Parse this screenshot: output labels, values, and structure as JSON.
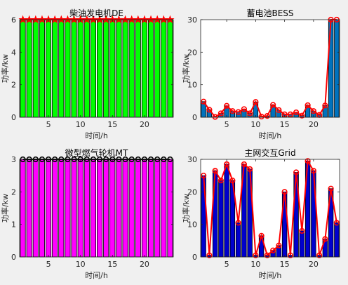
{
  "figure": {
    "background": "#f0f0f0"
  },
  "chart_data": [
    {
      "type": "bar",
      "title": "柴油发电机DE",
      "xlabel": "时间/h",
      "ylabel": "功率/kw",
      "x": [
        1,
        2,
        3,
        4,
        5,
        6,
        7,
        8,
        9,
        10,
        11,
        12,
        13,
        14,
        15,
        16,
        17,
        18,
        19,
        20,
        21,
        22,
        23,
        24
      ],
      "values": [
        6,
        6,
        6,
        6,
        6,
        6,
        6,
        6,
        6,
        6,
        6,
        6,
        6,
        6,
        6,
        6,
        6,
        6,
        6,
        6,
        6,
        6,
        6,
        6
      ],
      "bar_color": "#00ff00",
      "line_color": "#ff0000",
      "marker": "star",
      "xlim": [
        0.5,
        24.5
      ],
      "ylim": [
        0,
        6
      ],
      "xticks": [
        5,
        10,
        15,
        20
      ],
      "yticks": [
        0,
        2,
        4,
        6
      ]
    },
    {
      "type": "bar",
      "title": "蓄电池BESS",
      "xlabel": "时间/h",
      "ylabel": "功率/kw",
      "x": [
        1,
        2,
        3,
        4,
        5,
        6,
        7,
        8,
        9,
        10,
        11,
        12,
        13,
        14,
        15,
        16,
        17,
        18,
        19,
        20,
        21,
        22,
        23,
        24
      ],
      "values": [
        4.8,
        2.3,
        0.1,
        1.2,
        3.5,
        1.9,
        1.6,
        2.5,
        1.2,
        4.7,
        0.2,
        0.4,
        3.8,
        2.2,
        0.9,
        0.9,
        1.5,
        0.5,
        3.7,
        1.9,
        0.7,
        3.6,
        30,
        30
      ],
      "bar_color": "#0072bd",
      "line_color": "#ff0000",
      "marker": "circle",
      "xlim": [
        0.5,
        24.5
      ],
      "ylim": [
        0,
        30
      ],
      "xticks": [
        5,
        10,
        15,
        20
      ],
      "yticks": [
        0,
        10,
        20,
        30
      ]
    },
    {
      "type": "bar",
      "title": "微型燃气轮机MT",
      "xlabel": "时间/h",
      "ylabel": "功率/kw",
      "x": [
        1,
        2,
        3,
        4,
        5,
        6,
        7,
        8,
        9,
        10,
        11,
        12,
        13,
        14,
        15,
        16,
        17,
        18,
        19,
        20,
        21,
        22,
        23,
        24
      ],
      "values": [
        3,
        3,
        3,
        3,
        3,
        3,
        3,
        3,
        3,
        3,
        3,
        3,
        3,
        3,
        3,
        3,
        3,
        3,
        3,
        3,
        3,
        3,
        3,
        3
      ],
      "bar_color": "#ff00ff",
      "line_color": "#000000",
      "marker": "circle",
      "xlim": [
        0.5,
        24.5
      ],
      "ylim": [
        0,
        3
      ],
      "xticks": [
        5,
        10,
        15,
        20
      ],
      "yticks": [
        0,
        1,
        2,
        3
      ]
    },
    {
      "type": "bar",
      "title": "主网交互Grid",
      "xlabel": "时间/h",
      "ylabel": "功率/kw",
      "x": [
        1,
        2,
        3,
        4,
        5,
        6,
        7,
        8,
        9,
        10,
        11,
        12,
        13,
        14,
        15,
        16,
        17,
        18,
        19,
        20,
        21,
        22,
        23,
        24
      ],
      "values": [
        25,
        0.5,
        26.5,
        23.5,
        28.5,
        23.5,
        10.5,
        28.5,
        27,
        0.5,
        6.5,
        0.5,
        2,
        3.5,
        20,
        0.5,
        26,
        8,
        29.5,
        26.5,
        0.5,
        5.5,
        21,
        10.5
      ],
      "bar_color": "#0000cd",
      "line_color": "#ff0000",
      "marker": "circle",
      "xlim": [
        0.5,
        24.5
      ],
      "ylim": [
        0,
        30
      ],
      "xticks": [
        5,
        10,
        15,
        20
      ],
      "yticks": [
        0,
        10,
        20,
        30
      ]
    }
  ]
}
